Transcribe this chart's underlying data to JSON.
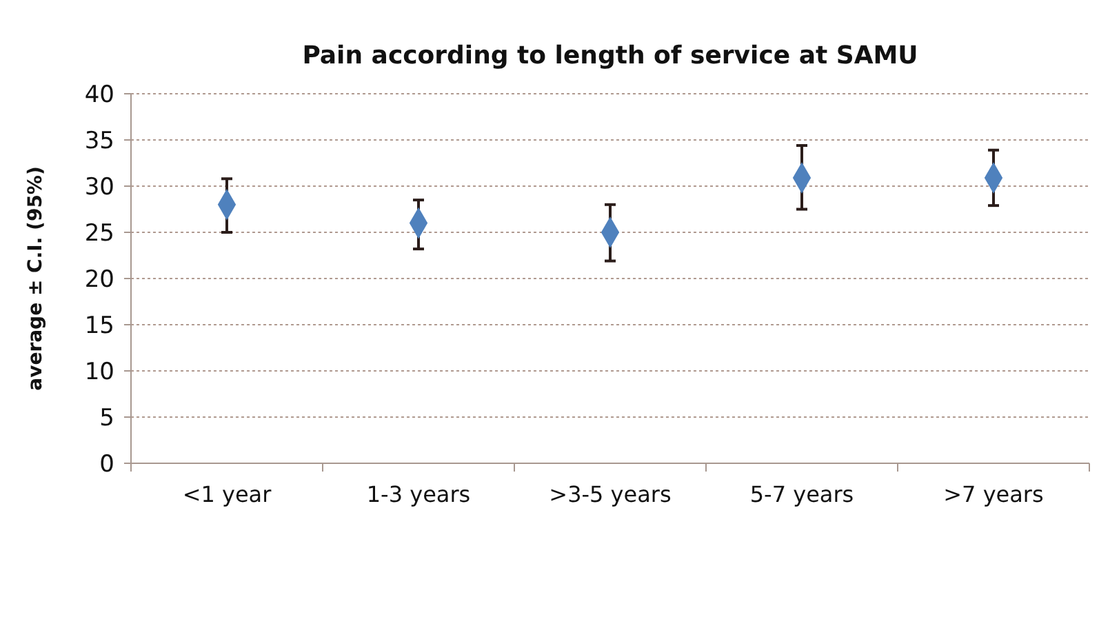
{
  "chart_data": {
    "type": "scatter",
    "title": "Pain according to length of service at SAMU",
    "ylabel": "average ± C.I. (95%)",
    "categories": [
      "<1 year",
      "1-3 years",
      ">3-5 years",
      "5-7 years",
      ">7 years"
    ],
    "series": [
      {
        "color": "#4f81bd",
        "values": [
          28,
          26,
          25,
          30.9,
          30.9
        ],
        "errors": [
          [
            25,
            30.8
          ],
          [
            23.2,
            28.5
          ],
          [
            21.9,
            28
          ],
          [
            27.5,
            34.4
          ],
          [
            27.9,
            33.9
          ]
        ]
      }
    ],
    "ylim": [
      0,
      40
    ],
    "yticks": [
      0,
      5,
      10,
      15,
      20,
      25,
      30,
      35,
      40
    ],
    "grid": "y",
    "marker": "diamond"
  }
}
